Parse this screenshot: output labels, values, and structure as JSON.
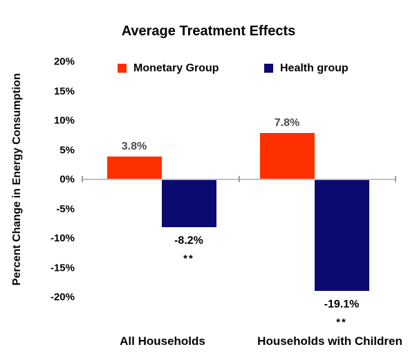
{
  "title": "Average Treatment Effects",
  "legend": {
    "items": [
      {
        "label": "Monetary Group",
        "color": "#FF3000"
      },
      {
        "label": "Health group",
        "color": "#0A0A70"
      }
    ]
  },
  "axis": {
    "ylabel": "Percent Change in Energy Consumption"
  },
  "colors": {
    "monetary": "#FF3000",
    "health": "#0A0A70",
    "axis_line": "#C0C0C0",
    "axis_tick": "#9B9B9B",
    "positive_value_label": "#4D4D4D",
    "negative_value_label": "#000000"
  },
  "chart_data": {
    "type": "bar",
    "title": "Average Treatment Effects",
    "xlabel": "",
    "ylabel": "Percent Change in Energy Consumption",
    "ylim": [
      -20,
      20
    ],
    "ytick_values": [
      20,
      15,
      10,
      5,
      0,
      -5,
      -10,
      -15,
      -20
    ],
    "ytick_labels": [
      "20%",
      "15%",
      "10%",
      "5%",
      "0%",
      "-5%",
      "-10%",
      "-15%",
      "-20%"
    ],
    "categories": [
      "All Households",
      "Households with Children"
    ],
    "series": [
      {
        "name": "Monetary Group",
        "color": "#FF3000",
        "values": [
          3.8,
          7.8
        ],
        "value_labels": [
          "3.8%",
          "7.8%"
        ],
        "significance": [
          "",
          ""
        ]
      },
      {
        "name": "Health group",
        "color": "#0A0A70",
        "values": [
          -8.2,
          -19.1
        ],
        "value_labels": [
          "-8.2%",
          "-19.1%"
        ],
        "significance": [
          "**",
          "**"
        ]
      }
    ],
    "legend_position": "top",
    "grid": false
  }
}
